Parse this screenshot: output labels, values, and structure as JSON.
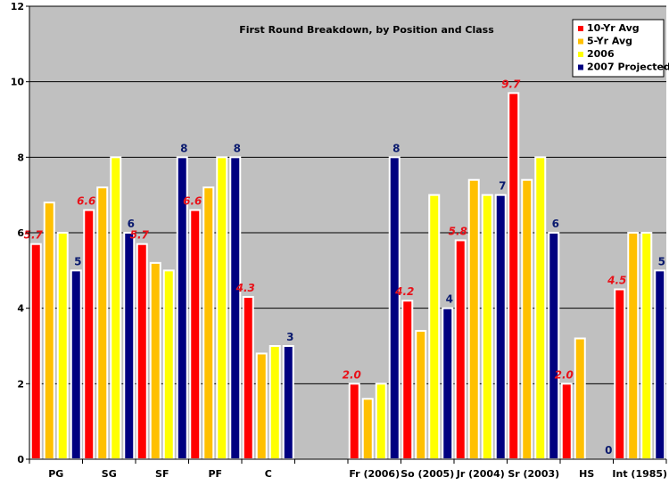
{
  "chart_data": {
    "type": "bar",
    "title": "First Round Breakdown, by Position and Class",
    "xlabel": "",
    "ylabel": "",
    "ylim": [
      0,
      12
    ],
    "yticks": [
      0,
      2,
      4,
      6,
      8,
      10,
      12
    ],
    "grid": true,
    "legend_position": "top-right",
    "categories": [
      "PG",
      "SG",
      "SF",
      "PF",
      "C",
      "",
      "Fr (2006)",
      "So (2005)",
      "Jr (2004)",
      "Sr (2003)",
      "HS",
      "Int (1985)"
    ],
    "series": [
      {
        "name": "10-Yr Avg",
        "color": "#ff0000",
        "values": [
          5.7,
          6.6,
          5.7,
          6.6,
          4.3,
          null,
          2.0,
          4.2,
          5.8,
          9.7,
          2.0,
          4.5
        ]
      },
      {
        "name": "5-Yr Avg",
        "color": "#ffc000",
        "values": [
          6.8,
          7.2,
          5.2,
          7.2,
          2.8,
          null,
          1.6,
          3.4,
          7.4,
          7.4,
          3.2,
          6.0
        ]
      },
      {
        "name": "2006",
        "color": "#ffff00",
        "values": [
          6,
          8,
          5,
          8,
          3,
          null,
          2,
          7,
          7,
          8,
          0,
          6
        ]
      },
      {
        "name": "2007 Projected",
        "color": "#000080",
        "values": [
          5,
          6,
          8,
          8,
          3,
          null,
          8,
          4,
          7,
          6,
          0,
          5
        ]
      }
    ],
    "data_labels": {
      "10-Yr Avg": [
        "5.7",
        "6.6",
        "5.7",
        "6.6",
        "4.3",
        "",
        "2.0",
        "4.2",
        "5.8",
        "9.7",
        "2.0",
        "4.5"
      ],
      "2007 Projected": [
        "5",
        "6",
        "8",
        "8",
        "3",
        "",
        "8",
        "4",
        "7",
        "6",
        "0",
        "5"
      ]
    },
    "colors": {
      "plot_background": "#c0c0c0",
      "gridline": "#000000",
      "bar_outline": "#ffffff",
      "label_red": "#e8121a",
      "label_navy": "#0a1a6e"
    }
  }
}
